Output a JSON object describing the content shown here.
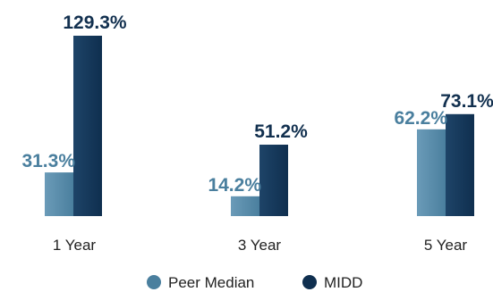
{
  "chart_data": {
    "type": "bar",
    "categories": [
      "1 Year",
      "3 Year",
      "5 Year"
    ],
    "series": [
      {
        "name": "Peer Median",
        "values": [
          31.3,
          14.2,
          62.2
        ],
        "labels": [
          "31.3%",
          "14.2%",
          "62.2%"
        ],
        "color": "#4a7f9e",
        "label_color": "#4a7f9e"
      },
      {
        "name": "MIDD",
        "values": [
          129.3,
          51.2,
          73.1
        ],
        "labels": [
          "129.3%",
          "51.2%",
          "73.1%"
        ],
        "color": "#0f2f4f",
        "label_color": "#12304f"
      }
    ],
    "ylim": [
      0,
      129.3
    ],
    "grid": false,
    "legend": "bottom-center",
    "unit": "%"
  }
}
